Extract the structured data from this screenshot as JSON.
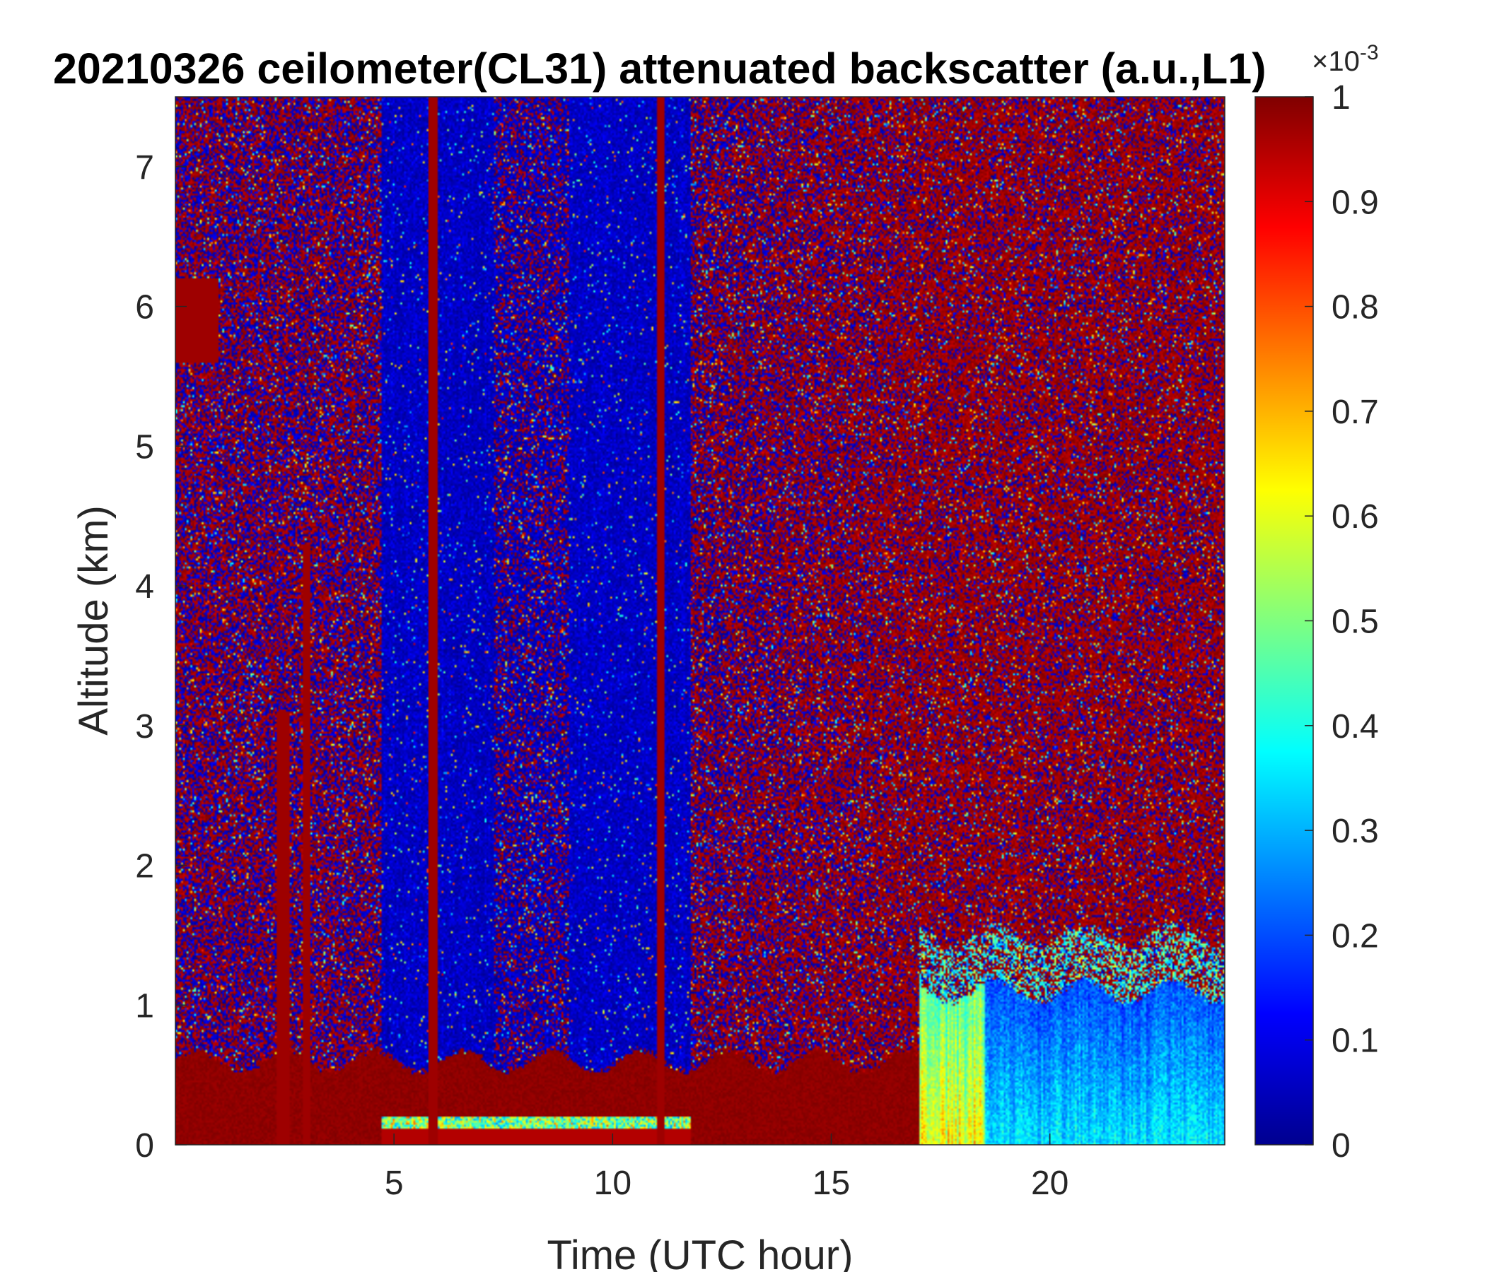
{
  "chart_data": {
    "type": "heatmap",
    "title": "20210326 ceilometer(CL31) attenuated backscatter (a.u.,L1)",
    "xlabel": "Time (UTC hour)",
    "ylabel": "Altitude (km)",
    "xlim": [
      0,
      24
    ],
    "ylim": [
      0,
      7.5
    ],
    "xticks": [
      5,
      10,
      15,
      20
    ],
    "yticks": [
      0,
      1,
      2,
      3,
      4,
      5,
      6,
      7
    ],
    "colormap": "jet",
    "colorbar": {
      "clim": [
        0,
        1
      ],
      "ticks": [
        "0",
        "0.1",
        "0.2",
        "0.3",
        "0.4",
        "0.5",
        "0.6",
        "0.7",
        "0.8",
        "0.9",
        "1"
      ],
      "exponent_base": "×10",
      "exponent_power": "-3"
    },
    "features": [
      {
        "feature": "boundary layer aerosol",
        "time_range": [
          0,
          17
        ],
        "altitude_top_km": 0.6,
        "value": 1.0
      },
      {
        "feature": "boundary layer aerosol (night)",
        "time_range": [
          17,
          24
        ],
        "altitude_top_km": 1.1,
        "value": 0.35
      },
      {
        "feature": "low backscatter period",
        "time_range": [
          4.7,
          11.8
        ],
        "altitude_range_km": [
          0.2,
          7.5
        ],
        "value": 0.05
      },
      {
        "feature": "noise band",
        "time_range": [
          7.3,
          9.0
        ],
        "altitude_range_km": [
          0.2,
          7.5
        ],
        "value": 0.5
      },
      {
        "feature": "cloud column",
        "time_range": [
          2.3,
          2.6
        ],
        "altitude_range_km": [
          0,
          3.1
        ],
        "value": 1.0
      },
      {
        "feature": "cloud column",
        "time_range": [
          2.9,
          3.1
        ],
        "altitude_range_km": [
          0,
          4.3
        ],
        "value": 1.0
      },
      {
        "feature": "cloud column",
        "time_range": [
          5.8,
          6.0
        ],
        "altitude_range_km": [
          0,
          7.5
        ],
        "value": 1.0
      },
      {
        "feature": "cloud column",
        "time_range": [
          11.0,
          11.2
        ],
        "altitude_range_km": [
          0,
          7.5
        ],
        "value": 1.0
      },
      {
        "feature": "cloud layer",
        "time_range": [
          0,
          1.0
        ],
        "altitude_range_km": [
          5.6,
          6.2
        ],
        "value": 1.0
      }
    ]
  }
}
